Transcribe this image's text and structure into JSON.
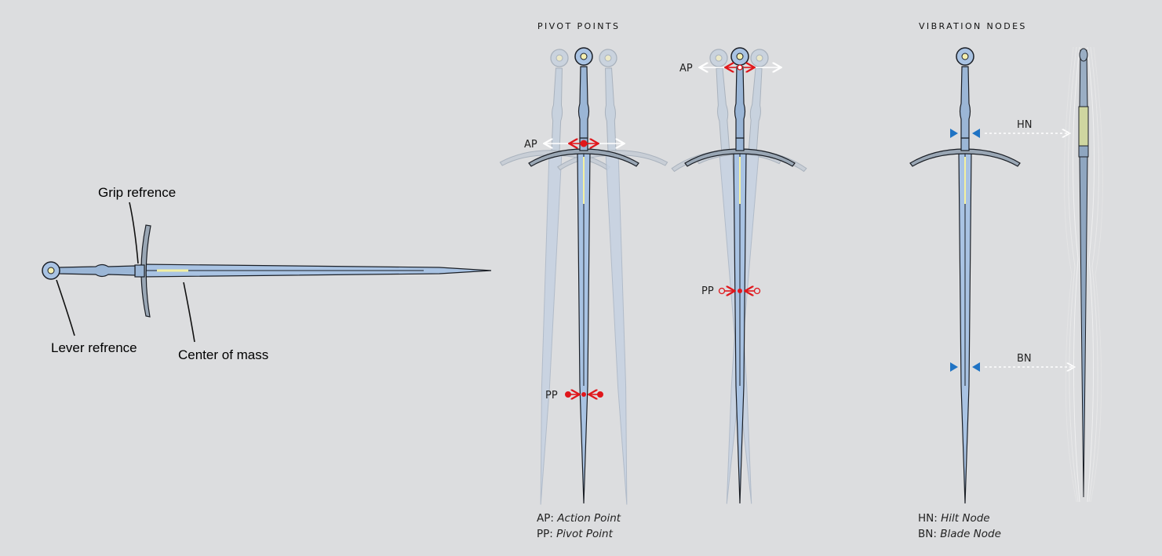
{
  "left_diagram": {
    "labels": {
      "grip": "Grip refrence",
      "lever": "Lever refrence",
      "com": "Center of mass"
    }
  },
  "pivot_section": {
    "heading": "PIVOT POINTS",
    "ap": "AP",
    "pp": "PP",
    "legend": [
      {
        "abbr": "AP:",
        "term": "Action Point"
      },
      {
        "abbr": "PP:",
        "term": "Pivot Point"
      }
    ]
  },
  "vibration_section": {
    "heading": "VIBRATION NODES",
    "hn": "HN",
    "bn": "BN",
    "legend": [
      {
        "abbr": "HN:",
        "term": "Hilt Node"
      },
      {
        "abbr": "BN:",
        "term": "Blade Node"
      }
    ]
  },
  "colors": {
    "background": "#dcdddf",
    "blade": "#a9c3e3",
    "outline": "#1b1f26",
    "accent_red": "#e0161b",
    "node_blue": "#1f73c4",
    "inscription": "#f3f0a0"
  }
}
